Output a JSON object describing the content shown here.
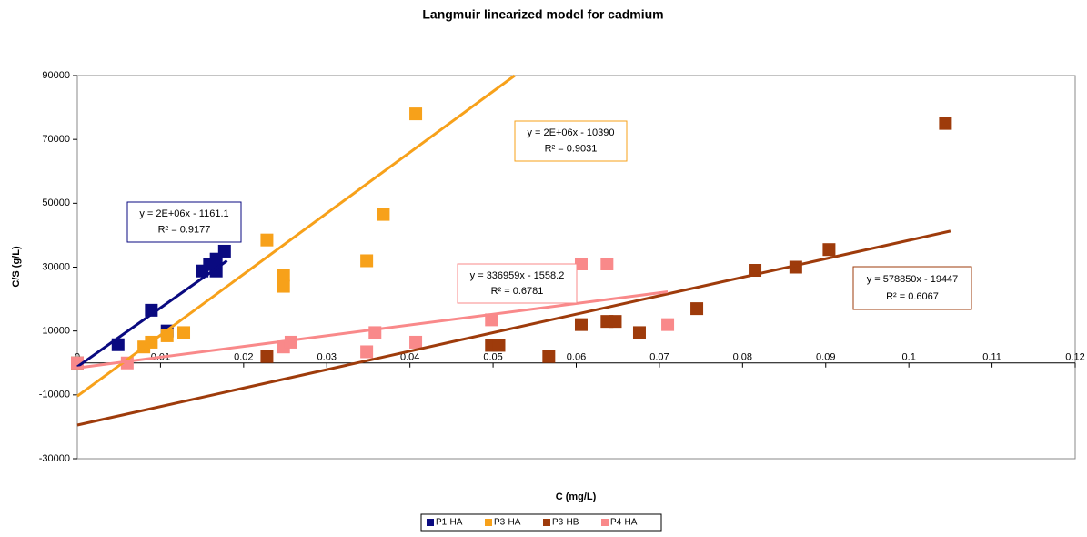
{
  "chart_data": {
    "type": "scatter",
    "title": "Langmuir linearized model for cadmium",
    "x_label": "C (mg/L)",
    "y_label": "C/S (g/L)",
    "xlim": [
      0,
      0.12
    ],
    "xticks": [
      0,
      0.01,
      0.02,
      0.03,
      0.04,
      0.05,
      0.06,
      0.07,
      0.08,
      0.09,
      0.1,
      0.11,
      0.12
    ],
    "ylim": [
      -30000,
      90000
    ],
    "yticks": [
      -30000,
      -10000,
      10000,
      30000,
      50000,
      70000,
      90000
    ],
    "legend": "bottom",
    "series": [
      {
        "name": "P1-HA",
        "color": "#0a0a80",
        "x": [
          0,
          0.0049,
          0.0089,
          0.0108,
          0.015,
          0.0159,
          0.0167,
          0.0167,
          0.0177
        ],
        "values": [
          0,
          5700,
          16500,
          10000,
          28800,
          30800,
          28800,
          32500,
          35000
        ],
        "trendline": {
          "x": [
            0,
            0.018
          ],
          "y": [
            -1200,
            32000
          ],
          "equation": "y = 2E+06x - 1161.1",
          "r2": "R² = 0.9177"
        }
      },
      {
        "name": "P3-HA",
        "color": "#f7a11a",
        "x": [
          0,
          0.008,
          0.0089,
          0.0108,
          0.0128,
          0.0228,
          0.0248,
          0.0248,
          0.0348,
          0.0368,
          0.0407
        ],
        "values": [
          0,
          5000,
          6500,
          8500,
          9500,
          38500,
          27500,
          24000,
          32000,
          46500,
          78000
        ],
        "trendline": {
          "x": [
            0,
            0.0526
          ],
          "y": [
            -10390,
            90000
          ],
          "equation": "y = 2E+06x - 10390",
          "r2": "R² = 0.9031"
        }
      },
      {
        "name": "P3-HB",
        "color": "#9e3b0b",
        "x": [
          0.0228,
          0.0498,
          0.0507,
          0.0567,
          0.0606,
          0.0637,
          0.0647,
          0.0676,
          0.0745,
          0.0815,
          0.0864,
          0.0904,
          0.1044
        ],
        "values": [
          2000,
          5500,
          5500,
          2000,
          12000,
          13000,
          13000,
          9500,
          17000,
          29000,
          30000,
          35500,
          75000
        ],
        "trendline": {
          "x": [
            0,
            0.105
          ],
          "y": [
            -19447,
            41300
          ],
          "equation": "y = 578850x - 19447",
          "r2": "R² = 0.6067"
        }
      },
      {
        "name": "P4-HA",
        "color": "#f9898a",
        "x": [
          0,
          0.006,
          0.0248,
          0.0257,
          0.0348,
          0.0358,
          0.0407,
          0.0498,
          0.0606,
          0.0637,
          0.071
        ],
        "values": [
          0,
          0,
          5000,
          6500,
          3500,
          9500,
          6500,
          13500,
          31000,
          31000,
          12000
        ],
        "trendline": {
          "x": [
            0,
            0.071
          ],
          "y": [
            -1558,
            22300
          ],
          "equation": "y = 336959x - 1558.2",
          "r2": "R² = 0.6781"
        }
      }
    ]
  }
}
